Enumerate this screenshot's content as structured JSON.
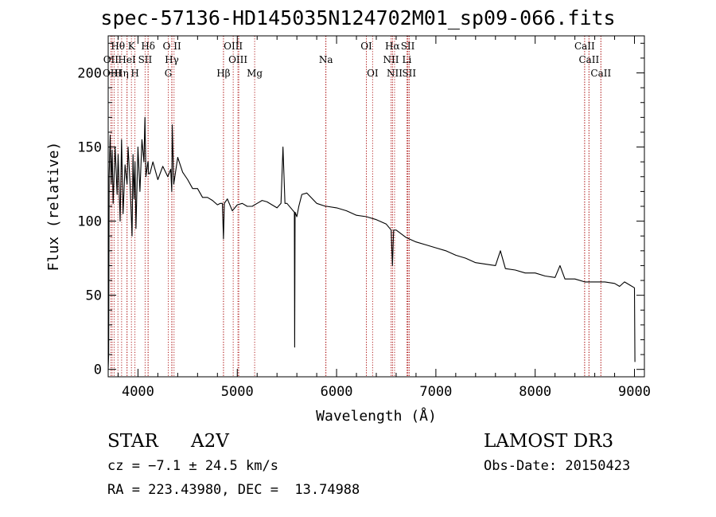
{
  "chart_data": {
    "type": "line",
    "title": "spec-57136-HD145035N124702M01_sp09-066.fits",
    "xlabel": "Wavelength (Å)",
    "ylabel": "Flux (relative)",
    "xlim": [
      3700,
      9100
    ],
    "ylim": [
      -5,
      225
    ],
    "xticks": [
      4000,
      5000,
      6000,
      7000,
      8000,
      9000
    ],
    "yticks": [
      0,
      50,
      100,
      150,
      200
    ],
    "xtick_labels": [
      "4000",
      "5000",
      "6000",
      "7000",
      "8000",
      "9000"
    ],
    "ytick_labels": [
      "0",
      "50",
      "100",
      "150",
      "200"
    ],
    "spectrum": {
      "x": [
        3700,
        3705,
        3710,
        3720,
        3730,
        3740,
        3750,
        3770,
        3790,
        3800,
        3820,
        3835,
        3850,
        3870,
        3890,
        3900,
        3920,
        3940,
        3950,
        3960,
        3970,
        3980,
        4000,
        4020,
        4040,
        4060,
        4070,
        4080,
        4100,
        4102,
        4105,
        4120,
        4150,
        4200,
        4250,
        4300,
        4330,
        4340,
        4345,
        4360,
        4400,
        4450,
        4500,
        4550,
        4600,
        4650,
        4700,
        4750,
        4800,
        4830,
        4850,
        4861,
        4870,
        4900,
        4950,
        5000,
        5050,
        5100,
        5150,
        5200,
        5250,
        5300,
        5350,
        5400,
        5440,
        5460,
        5480,
        5500,
        5550,
        5575,
        5578,
        5582,
        5600,
        5620,
        5650,
        5700,
        5800,
        5890,
        5900,
        6000,
        6100,
        6200,
        6300,
        6400,
        6500,
        6550,
        6563,
        6575,
        6600,
        6700,
        6800,
        6900,
        7000,
        7100,
        7200,
        7300,
        7400,
        7500,
        7600,
        7650,
        7700,
        7800,
        7900,
        8000,
        8100,
        8200,
        8250,
        8300,
        8400,
        8500,
        8600,
        8700,
        8800,
        8850,
        8900,
        8950,
        9000,
        9005
      ],
      "y": [
        0,
        10,
        130,
        158,
        125,
        148,
        112,
        150,
        118,
        145,
        100,
        155,
        105,
        138,
        125,
        150,
        125,
        90,
        145,
        115,
        140,
        95,
        150,
        120,
        155,
        140,
        170,
        130,
        140,
        140,
        132,
        132,
        140,
        128,
        137,
        130,
        135,
        120,
        165,
        125,
        143,
        133,
        128,
        122,
        122,
        116,
        116,
        114,
        111,
        112,
        112,
        88,
        112,
        115,
        107,
        111,
        112,
        110,
        110,
        112,
        114,
        113,
        111,
        109,
        112,
        150,
        112,
        112,
        108,
        106,
        15,
        106,
        103,
        110,
        118,
        119,
        112,
        110,
        110,
        109,
        107,
        104,
        103,
        101,
        98,
        94,
        70,
        94,
        94,
        89,
        86,
        84,
        82,
        80,
        77,
        75,
        72,
        71,
        70,
        80,
        68,
        67,
        65,
        65,
        63,
        62,
        70,
        61,
        61,
        59,
        59,
        59,
        58,
        56,
        59,
        57,
        55,
        5
      ]
    },
    "lines_row1": [
      {
        "label": "Hθ",
        "wl": 3798
      },
      {
        "label": "K",
        "wl": 3934
      },
      {
        "label": "Hδ",
        "wl": 4102
      },
      {
        "label": "O II",
        "wl": 4342
      },
      {
        "label": "OIII",
        "wl": 4959
      },
      {
        "label": "OI",
        "wl": 6300
      },
      {
        "label": "Hα",
        "wl": 6563
      },
      {
        "label": "SII",
        "wl": 6717
      },
      {
        "label": "CaII",
        "wl": 8498
      }
    ],
    "lines_row2": [
      {
        "label": "OII",
        "wl": 3727
      },
      {
        "label": "HeI",
        "wl": 3889
      },
      {
        "label": "SII",
        "wl": 4072
      },
      {
        "label": "Hγ",
        "wl": 4341
      },
      {
        "label": "OIII",
        "wl": 5007
      },
      {
        "label": "Na",
        "wl": 5893
      },
      {
        "label": "NII",
        "wl": 6548
      },
      {
        "label": "Li",
        "wl": 6708
      },
      {
        "label": "CaII",
        "wl": 8542
      }
    ],
    "lines_row3": [
      {
        "label": "OIII",
        "wl": 3740
      },
      {
        "label": "Hη",
        "wl": 3835
      },
      {
        "label": "H",
        "wl": 3969
      },
      {
        "label": "G",
        "wl": 4305
      },
      {
        "label": "Hβ",
        "wl": 4861
      },
      {
        "label": "Mg",
        "wl": 5175
      },
      {
        "label": "OI",
        "wl": 6363
      },
      {
        "label": "NII",
        "wl": 6584
      },
      {
        "label": "SII",
        "wl": 6731
      },
      {
        "label": "CaII",
        "wl": 8662
      }
    ],
    "extra_lines": [
      3760,
      3890,
      4102,
      4340,
      4363,
      4861,
      5015,
      5890,
      6300,
      6563,
      6716,
      6731,
      8498,
      8542,
      8662
    ]
  },
  "info": {
    "obj_class": "STAR",
    "subclass": "A2V",
    "survey": "LAMOST DR3",
    "cz": "cz = −7.1 ± 24.5 km/s",
    "obs_date": "Obs-Date: 20150423",
    "coords": "RA = 223.43980, DEC =  13.74988"
  },
  "colors": {
    "line_marker": "#b22222",
    "spectrum": "#000000",
    "axes": "#000000"
  }
}
